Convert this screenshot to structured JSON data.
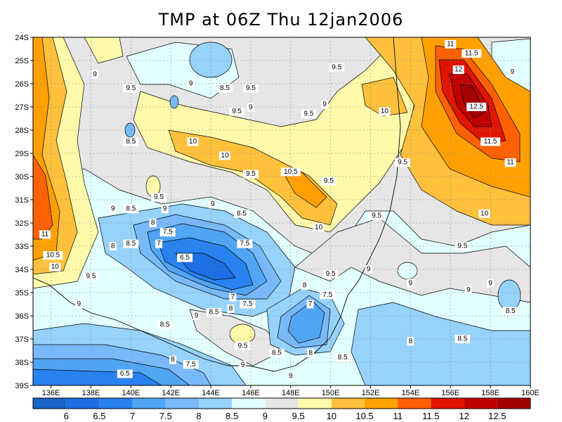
{
  "chart_data": {
    "type": "contour",
    "title": "TMP at 06Z Thu 12jan2006",
    "x_ticks": [
      "136E",
      "138E",
      "140E",
      "142E",
      "144E",
      "146E",
      "148E",
      "150E",
      "152E",
      "154E",
      "156E",
      "158E",
      "160E"
    ],
    "y_ticks": [
      "24S",
      "25S",
      "26S",
      "27S",
      "28S",
      "29S",
      "30S",
      "31S",
      "32S",
      "33S",
      "34S",
      "35S",
      "36S",
      "37S",
      "38S",
      "39S"
    ],
    "lon_range": [
      135.1,
      160
    ],
    "lat_range": [
      24,
      39
    ],
    "grid": true,
    "levels": [
      "6",
      "6.5",
      "7",
      "7.5",
      "8",
      "8.5",
      "9",
      "9.5",
      "10",
      "10.5",
      "11",
      "11.5",
      "12",
      "12.5"
    ],
    "colors": [
      "#1a64c8",
      "#1e6ee6",
      "#2882f0",
      "#50a5f5",
      "#78b9fa",
      "#96d2fa",
      "#e1ffff",
      "#e6e6e6",
      "#fffaaa",
      "#ffc03c",
      "#ffa000",
      "#ff6000",
      "#e11400",
      "#c00000",
      "#a50000"
    ],
    "contour_labels": [
      {
        "t": "9",
        "lon": 138.2,
        "lat": 25.6
      },
      {
        "t": "9.5",
        "lon": 140.0,
        "lat": 26.2
      },
      {
        "t": "9",
        "lon": 143.0,
        "lat": 26.0
      },
      {
        "t": "8.5",
        "lon": 144.7,
        "lat": 26.2
      },
      {
        "t": "9.5",
        "lon": 146.0,
        "lat": 26.2
      },
      {
        "t": "9",
        "lon": 146.0,
        "lat": 26.6
      },
      {
        "t": "9.5",
        "lon": 145.3,
        "lat": 27.2
      },
      {
        "t": "9.5",
        "lon": 150.3,
        "lat": 25.3
      },
      {
        "t": "9",
        "lon": 149.7,
        "lat": 26.9
      },
      {
        "t": "9.5",
        "lon": 148.9,
        "lat": 27.3
      },
      {
        "t": "10",
        "lon": 152.7,
        "lat": 27.2
      },
      {
        "t": "11",
        "lon": 156.0,
        "lat": 24.3
      },
      {
        "t": "11.5",
        "lon": 156.0,
        "lat": 24.7
      },
      {
        "t": "12",
        "lon": 156.4,
        "lat": 25.4
      },
      {
        "t": "12.5",
        "lon": 157.3,
        "lat": 27.0
      },
      {
        "t": "11.5",
        "lon": 158.0,
        "lat": 28.5
      },
      {
        "t": "11",
        "lon": 159.0,
        "lat": 29.4
      },
      {
        "t": "9",
        "lon": 159.1,
        "lat": 25.5
      },
      {
        "t": "8.5",
        "lon": 140.0,
        "lat": 28.5
      },
      {
        "t": "10",
        "lon": 143.1,
        "lat": 28.5
      },
      {
        "t": "10",
        "lon": 144.7,
        "lat": 29.1
      },
      {
        "t": "9.5",
        "lon": 146.0,
        "lat": 29.9
      },
      {
        "t": "10.5",
        "lon": 148.0,
        "lat": 29.8
      },
      {
        "t": "9.5",
        "lon": 149.9,
        "lat": 30.2
      },
      {
        "t": "9.5",
        "lon": 153.6,
        "lat": 29.4
      },
      {
        "t": "9.5",
        "lon": 141.4,
        "lat": 30.9
      },
      {
        "t": "9",
        "lon": 139.1,
        "lat": 31.4
      },
      {
        "t": "8.5",
        "lon": 140.0,
        "lat": 31.4
      },
      {
        "t": "9",
        "lon": 141.7,
        "lat": 31.4
      },
      {
        "t": "9",
        "lon": 144.1,
        "lat": 31.2
      },
      {
        "t": "8.5",
        "lon": 144.7,
        "lat": 31.6
      },
      {
        "t": "8",
        "lon": 141.1,
        "lat": 32.0
      },
      {
        "t": "7.5",
        "lon": 141.0,
        "lat": 32.4
      },
      {
        "t": "7",
        "lon": 141.4,
        "lat": 32.9
      },
      {
        "t": "10",
        "lon": 149.4,
        "lat": 32.2
      },
      {
        "t": "9.5",
        "lon": 152.3,
        "lat": 31.7
      },
      {
        "t": "10",
        "lon": 157.7,
        "lat": 31.6
      },
      {
        "t": "9.5",
        "lon": 156.6,
        "lat": 33.0
      },
      {
        "t": "11",
        "lon": 135.7,
        "lat": 32.5
      },
      {
        "t": "8",
        "lon": 139.1,
        "lat": 33.0
      },
      {
        "t": "8.5",
        "lon": 140.0,
        "lat": 32.9
      },
      {
        "t": "7.5",
        "lon": 145.7,
        "lat": 32.9
      },
      {
        "t": "6.5",
        "lon": 142.7,
        "lat": 33.5
      },
      {
        "t": "10.5",
        "lon": 136.1,
        "lat": 33.4
      },
      {
        "t": "10",
        "lon": 136.2,
        "lat": 33.9
      },
      {
        "t": "9.5",
        "lon": 138.0,
        "lat": 34.3
      },
      {
        "t": "9",
        "lon": 137.4,
        "lat": 35.5
      },
      {
        "t": "9.5",
        "lon": 150.0,
        "lat": 34.2
      },
      {
        "t": "9",
        "lon": 151.9,
        "lat": 34.0
      },
      {
        "t": "9",
        "lon": 154.0,
        "lat": 34.6
      },
      {
        "t": "9",
        "lon": 156.9,
        "lat": 34.9
      },
      {
        "t": "9",
        "lon": 158.0,
        "lat": 34.6
      },
      {
        "t": "8.5",
        "lon": 159.0,
        "lat": 35.8
      },
      {
        "t": "8",
        "lon": 148.7,
        "lat": 34.7
      },
      {
        "t": "7.5",
        "lon": 149.0,
        "lat": 35.1
      },
      {
        "t": "7",
        "lon": 149.4,
        "lat": 35.5
      },
      {
        "t": "7",
        "lon": 145.1,
        "lat": 35.2
      },
      {
        "t": "7.5",
        "lon": 145.0,
        "lat": 35.5
      },
      {
        "t": "8",
        "lon": 145.0,
        "lat": 35.7
      },
      {
        "t": "8.5",
        "lon": 145.0,
        "lat": 35.85
      },
      {
        "t": "9",
        "lon": 143.7,
        "lat": 36.0
      },
      {
        "t": "8.5",
        "lon": 141.7,
        "lat": 36.4
      },
      {
        "t": "8",
        "lon": 154.0,
        "lat": 37.1
      },
      {
        "t": "8.5",
        "lon": 156.6,
        "lat": 37.0
      },
      {
        "t": "9.5",
        "lon": 145.6,
        "lat": 37.3
      },
      {
        "t": "9",
        "lon": 145.6,
        "lat": 37.7
      },
      {
        "t": "8.5",
        "lon": 147.3,
        "lat": 37.6
      },
      {
        "t": "8",
        "lon": 149.0,
        "lat": 37.6
      },
      {
        "t": "8.5",
        "lon": 150.6,
        "lat": 37.8
      },
      {
        "t": "8",
        "lon": 142.1,
        "lat": 37.9
      },
      {
        "t": "7.5",
        "lon": 143.0,
        "lat": 38.1
      },
      {
        "t": "6.5",
        "lon": 139.7,
        "lat": 38.5
      },
      {
        "t": "9",
        "lon": 148.0,
        "lat": 38.6
      }
    ]
  }
}
